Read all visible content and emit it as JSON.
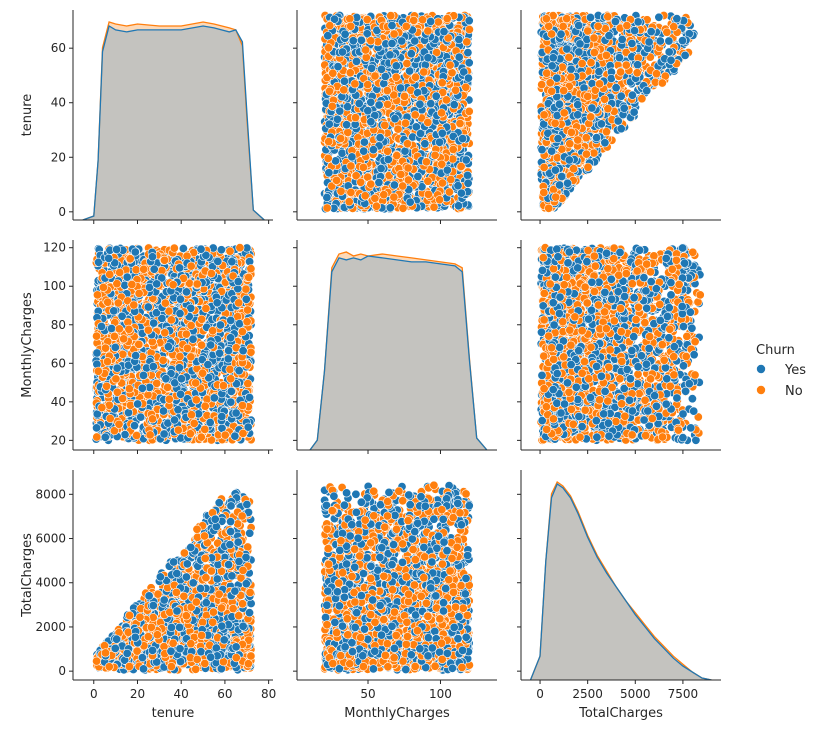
{
  "chart_data": {
    "type": "pairplot",
    "variables": [
      "tenure",
      "MonthlyCharges",
      "TotalCharges"
    ],
    "hue": "Churn",
    "legend": {
      "title": "Churn",
      "placement": "right",
      "entries": [
        {
          "label": "Yes",
          "color": "#1f77b4"
        },
        {
          "label": "No",
          "color": "#ff7f0e"
        }
      ]
    },
    "axes": {
      "tenure": {
        "range": [
          -9.5,
          82
        ],
        "x_ticks": [
          0,
          20,
          40,
          60,
          80
        ],
        "y_range": [
          -3,
          74
        ],
        "y_ticks": [
          0,
          20,
          40,
          60
        ],
        "data_range": [
          1,
          72
        ]
      },
      "MonthlyCharges": {
        "range": [
          1,
          139
        ],
        "x_ticks": [
          50,
          100
        ],
        "y_range": [
          15,
          124
        ],
        "y_ticks": [
          20,
          40,
          60,
          80,
          100,
          120
        ],
        "data_range": [
          20,
          120
        ]
      },
      "TotalCharges": {
        "range": [
          -1000,
          9500
        ],
        "x_ticks": [
          0,
          2500,
          5000,
          7500
        ],
        "y_range": [
          -400,
          9100
        ],
        "y_ticks": [
          0,
          2000,
          4000,
          6000,
          8000
        ],
        "data_range": [
          20,
          8600
        ]
      }
    },
    "diagonal": {
      "kind": "kde",
      "overlap_color": "#c4c3bf",
      "tenure": {
        "x": [
          -5,
          0,
          2,
          4,
          7,
          10,
          15,
          20,
          30,
          40,
          50,
          55,
          62,
          65,
          68,
          70,
          73,
          78
        ],
        "Yes": [
          0,
          0.02,
          0.3,
          0.85,
          0.98,
          0.96,
          0.95,
          0.96,
          0.96,
          0.96,
          0.98,
          0.97,
          0.95,
          0.96,
          0.9,
          0.55,
          0.05,
          0
        ],
        "No": [
          0,
          0.02,
          0.3,
          0.87,
          1.0,
          0.99,
          0.98,
          0.99,
          0.98,
          0.98,
          1.0,
          0.99,
          0.97,
          0.96,
          0.88,
          0.52,
          0.05,
          0
        ]
      },
      "MonthlyCharges": {
        "x": [
          10,
          15,
          20,
          25,
          30,
          35,
          40,
          45,
          50,
          60,
          70,
          80,
          90,
          100,
          110,
          115,
          120,
          125,
          132
        ],
        "Yes": [
          0,
          0.05,
          0.4,
          0.9,
          0.97,
          0.96,
          0.97,
          0.96,
          0.98,
          0.97,
          0.96,
          0.95,
          0.95,
          0.94,
          0.93,
          0.9,
          0.45,
          0.06,
          0
        ],
        "No": [
          0,
          0.05,
          0.4,
          0.92,
          0.99,
          1.0,
          0.98,
          0.99,
          0.98,
          0.99,
          0.98,
          0.97,
          0.96,
          0.95,
          0.94,
          0.92,
          0.46,
          0.06,
          0
        ]
      },
      "TotalCharges": {
        "x": [
          -500,
          0,
          300,
          600,
          900,
          1200,
          1600,
          2000,
          2500,
          3000,
          3500,
          4000,
          4500,
          5000,
          5500,
          6000,
          6500,
          7000,
          7500,
          8000,
          8500,
          9000
        ],
        "Yes": [
          0,
          0.12,
          0.6,
          0.92,
          0.99,
          0.97,
          0.92,
          0.84,
          0.72,
          0.62,
          0.54,
          0.47,
          0.4,
          0.33,
          0.27,
          0.21,
          0.16,
          0.11,
          0.07,
          0.04,
          0.01,
          0
        ],
        "No": [
          0,
          0.12,
          0.6,
          0.94,
          1.0,
          0.98,
          0.93,
          0.85,
          0.73,
          0.63,
          0.55,
          0.47,
          0.4,
          0.34,
          0.28,
          0.22,
          0.17,
          0.12,
          0.08,
          0.04,
          0.01,
          0
        ]
      }
    },
    "scatter": {
      "kind": "scatter",
      "points_per_class": 1300,
      "relationship": "TotalCharges ≈ tenure × MonthlyCharges",
      "marker": "circle"
    }
  }
}
